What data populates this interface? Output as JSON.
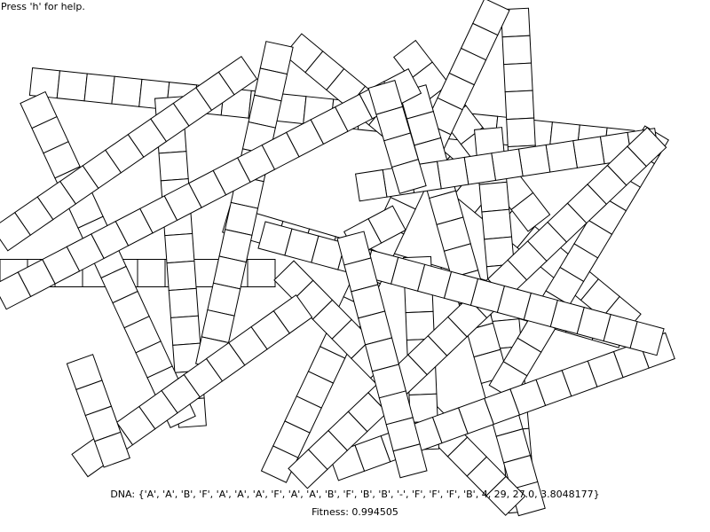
{
  "help_hint": "Press 'h' for help.",
  "dna": {
    "label": "DNA:",
    "value": "{'A', 'A', 'B', 'F', 'A', 'A', 'A', 'F', 'A', 'A', 'B', 'F', 'B', 'B', '-', 'F', 'F', 'F', 'B', 4, 29, 27.0, 3.8048177}"
  },
  "fitness": {
    "label": "Fitness:",
    "value": "0.994505"
  },
  "colors": {
    "background": "#ffffff",
    "stroke": "#000000",
    "cell_fill": "#ffffff"
  }
}
